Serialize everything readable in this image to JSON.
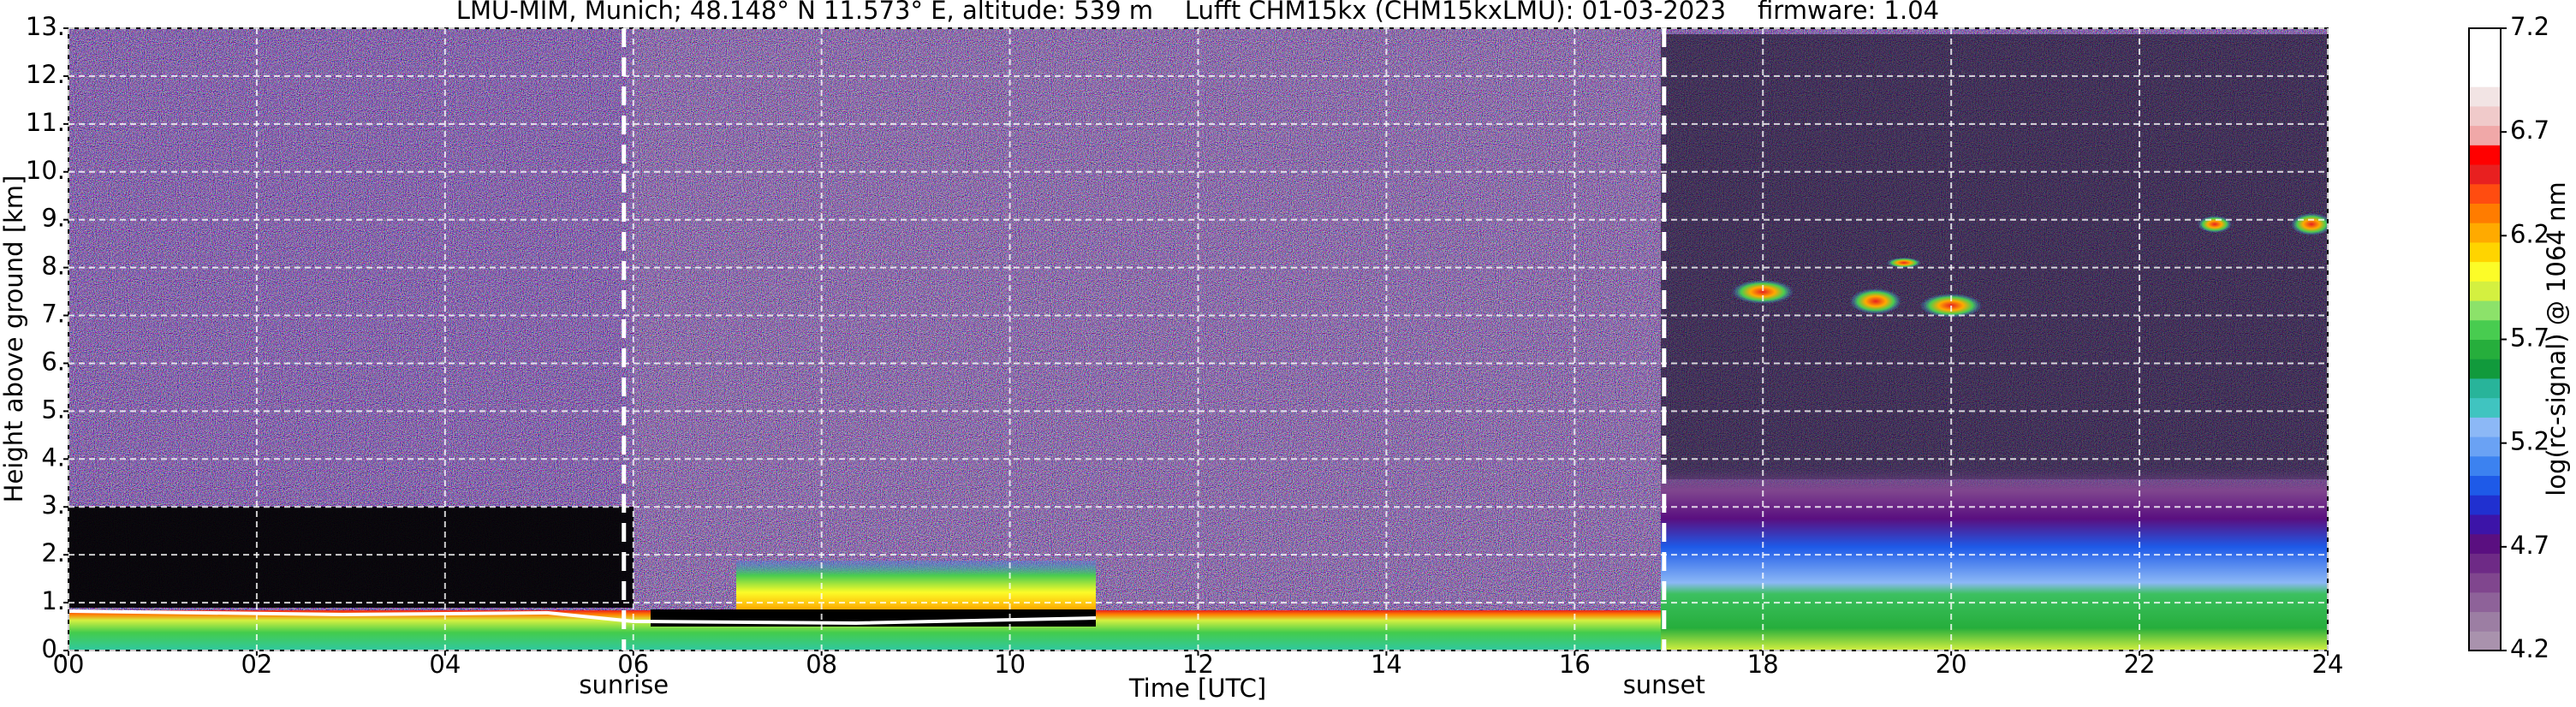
{
  "chart_data": {
    "type": "heatmap",
    "title": "LMU-MIM, Munich; 48.148° N 11.573° E, altitude: 539 m    Lufft CHM15kx (CHM15kxLMU): 01-03-2023    firmware: 1.04",
    "x_label": "Time [UTC]",
    "y_label": "Height above ground [km]",
    "xlim": [
      0,
      24
    ],
    "xticks": [
      {
        "value": 0,
        "label": "00"
      },
      {
        "value": 2,
        "label": "02"
      },
      {
        "value": 4,
        "label": "04"
      },
      {
        "value": 6,
        "label": "06"
      },
      {
        "value": 8,
        "label": "08"
      },
      10,
      12,
      14,
      16,
      18,
      20,
      22,
      24
    ],
    "ylim": [
      0,
      13
    ],
    "yticks": [
      {
        "value": 0,
        "label": "0."
      },
      {
        "value": 1,
        "label": "1."
      },
      {
        "value": 2,
        "label": "2."
      },
      {
        "value": 3,
        "label": "3."
      },
      {
        "value": 4,
        "label": "4."
      },
      {
        "value": 5,
        "label": "5."
      },
      {
        "value": 6,
        "label": "6."
      },
      {
        "value": 7,
        "label": "7."
      },
      {
        "value": 8,
        "label": "8."
      },
      {
        "value": 9,
        "label": "9."
      },
      {
        "value": 10,
        "label": "10."
      },
      {
        "value": 11,
        "label": "11."
      },
      {
        "value": 12,
        "label": "12."
      },
      {
        "value": 13,
        "label": "13."
      }
    ],
    "grid": true,
    "markers": [
      {
        "label": "sunrise",
        "x": 5.9
      },
      {
        "label": "sunset",
        "x": 16.95
      }
    ],
    "colorbar": {
      "label": "log(rc-signal) @ 1064 nm",
      "lim": [
        4.2,
        7.2
      ],
      "ticks": [
        4.2,
        4.7,
        5.2,
        5.7,
        6.2,
        6.7,
        7.2
      ],
      "colors": [
        "#a992ad",
        "#9c7ea3",
        "#8e6299",
        "#80468e",
        "#6e2a86",
        "#5a0f80",
        "#3c14a8",
        "#2030d0",
        "#1e5ae8",
        "#3c82f0",
        "#6aa2f4",
        "#8cb8f6",
        "#40c4c0",
        "#28b49a",
        "#119a3c",
        "#26ae3c",
        "#48cc50",
        "#8ce26a",
        "#d4f040",
        "#fcfc28",
        "#ffd400",
        "#ffaa00",
        "#ff7c00",
        "#ff4c10",
        "#e82020",
        "#ff0000",
        "#f0a8a8",
        "#f0caca",
        "#f2e4e4",
        "#ffffff",
        "#ffffff",
        "#ffffff"
      ]
    }
  }
}
